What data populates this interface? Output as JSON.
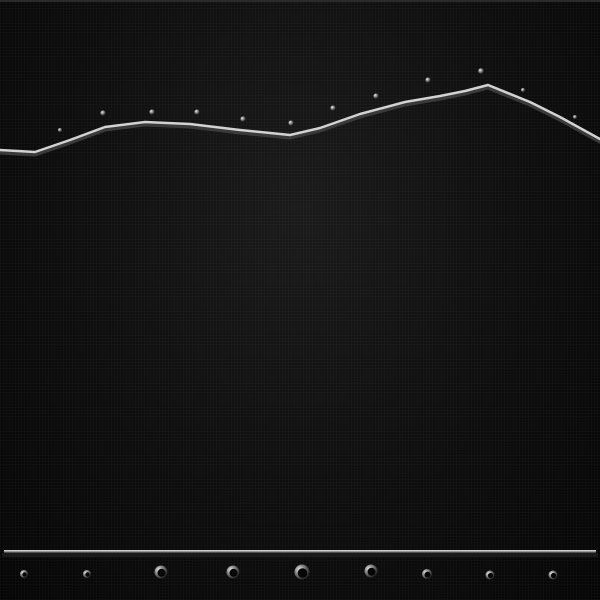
{
  "colors": {
    "background": "#0d0d0d",
    "ridge": "#d8d8d8",
    "ridge_shadow": "#5a5a5a",
    "rivet": "#bdbdbd",
    "rivet_hole": "#050505"
  }
}
